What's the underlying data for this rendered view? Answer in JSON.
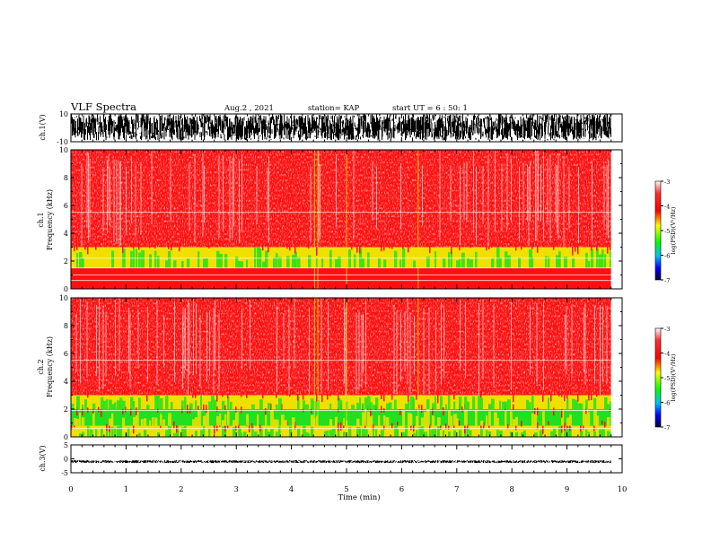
{
  "header": {
    "title": "VLF Spectra",
    "date": "Aug.2 , 2021",
    "station": "station= KAP",
    "start": "start UT = 6 : 50: 1"
  },
  "colors": {
    "red": "#ff1010",
    "yellow": "#f0e000",
    "green": "#20e020",
    "blue": "#0000ff",
    "navy": "#000050",
    "trace": "#000000"
  },
  "chart_data": [
    {
      "type": "line",
      "name": "ch1-waveform",
      "ylabel": "ch.1(V)",
      "ylim": [
        -10,
        10
      ],
      "y_ticks": [
        "10",
        "-10"
      ],
      "xlim": [
        0,
        10
      ],
      "x_extent_min": 9.8,
      "amplitude_range_v": [
        -9,
        10
      ]
    },
    {
      "type": "heatmap",
      "name": "ch1-spectrogram",
      "ylabel": "ch.1 Frequency (kHz)",
      "ylim": [
        0,
        10
      ],
      "y_ticks": [
        "0",
        "2",
        "4",
        "6",
        "8",
        "10"
      ],
      "xlim": [
        0,
        10
      ],
      "x_extent_min": 9.8,
      "bands_khz": [
        {
          "range": [
            0,
            1.5
          ],
          "level": "red"
        },
        {
          "range": [
            1.5,
            3.0
          ],
          "level": "yellow-green"
        },
        {
          "range": [
            3.0,
            10
          ],
          "level": "red-white"
        }
      ],
      "lines_khz": [
        0.6,
        1.0,
        1.5,
        2.2,
        5.5
      ]
    },
    {
      "type": "heatmap",
      "name": "ch2-spectrogram",
      "ylabel": "ch.2 Frequency (kHz)",
      "ylim": [
        0,
        10
      ],
      "y_ticks": [
        "0",
        "2",
        "4",
        "6",
        "8",
        "10"
      ],
      "xlim": [
        0,
        10
      ],
      "x_extent_min": 9.8,
      "bands_khz": [
        {
          "range": [
            0,
            0.8
          ],
          "level": "yellow"
        },
        {
          "range": [
            0.8,
            2.0
          ],
          "level": "green"
        },
        {
          "range": [
            2.0,
            3.0
          ],
          "level": "yellow-green"
        },
        {
          "range": [
            3.0,
            10
          ],
          "level": "red-white"
        }
      ],
      "lines_khz": [
        0.6,
        1.9,
        5.5
      ]
    },
    {
      "type": "line",
      "name": "ch3-waveform",
      "ylabel": "ch.3(V)",
      "ylim": [
        -5,
        5
      ],
      "y_ticks": [
        "5",
        "0",
        "-5"
      ],
      "xlim": [
        0,
        10
      ],
      "x_extent_min": 9.8,
      "level_v": -1,
      "amplitude_range_v": [
        -1.5,
        -0.5
      ]
    }
  ],
  "time_axis": {
    "label": "Time (min)",
    "ticks": [
      "0",
      "1",
      "2",
      "3",
      "4",
      "5",
      "6",
      "7",
      "8",
      "9",
      "10"
    ]
  },
  "colorbars": [
    {
      "label": "log(PSD)(V²/Hz)",
      "ticks": [
        "-3",
        "-4",
        "-5",
        "-6",
        "-7"
      ],
      "colors": [
        "#ffffff",
        "#ff0000",
        "#ffff00",
        "#00ff00",
        "#00c0ff",
        "#0000ff",
        "#000040"
      ]
    },
    {
      "label": "log(PSD)(V²/Hz)",
      "ticks": [
        "-3",
        "-4",
        "-5",
        "-6",
        "-7"
      ],
      "colors": [
        "#ffffff",
        "#ff0000",
        "#ffff00",
        "#00ff00",
        "#00c0ff",
        "#0000ff",
        "#000040"
      ]
    }
  ]
}
